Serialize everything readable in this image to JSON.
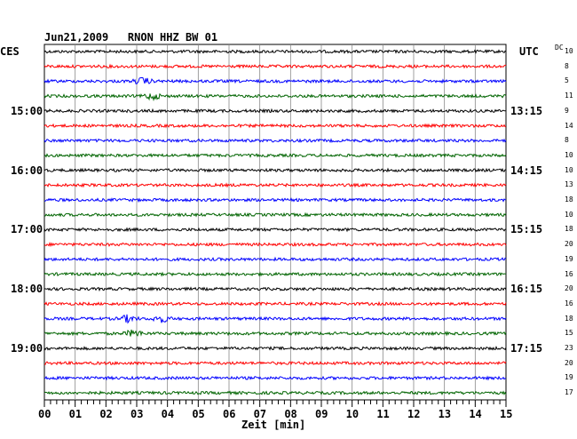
{
  "header": {
    "title": "Jun21,2009   RNON HHZ BW 01",
    "left_label": "CES",
    "right_label": "UTC",
    "dc_label": "DC"
  },
  "chart_data": {
    "type": "line",
    "title": "Jun21,2009   RNON HHZ BW 01",
    "xlabel": "Zeit [min]",
    "xlim": [
      0,
      15
    ],
    "x_ticks": [
      "00",
      "01",
      "02",
      "03",
      "04",
      "05",
      "06",
      "07",
      "08",
      "09",
      "10",
      "11",
      "12",
      "13",
      "14",
      "15"
    ],
    "trace_count": 24,
    "trace_colors": [
      "#000000",
      "#ff0000",
      "#0000ff",
      "#006400"
    ],
    "left_time_labels": [
      "15:00",
      "16:00",
      "17:00",
      "18:00",
      "19:00"
    ],
    "right_time_labels": [
      "13:15",
      "14:15",
      "15:15",
      "16:15",
      "17:15"
    ],
    "time_label_trace_index": [
      4,
      8,
      12,
      16,
      20
    ],
    "dc_values": [
      "10",
      "8",
      "5",
      "11",
      "9",
      "14",
      "8",
      "10",
      "10",
      "13",
      "18",
      "10",
      "18",
      "20",
      "19",
      "16",
      "20",
      "16",
      "18",
      "15",
      "23",
      "20",
      "19",
      "17"
    ],
    "events": [
      {
        "trace": 2,
        "minute": 3.2,
        "label": ""
      },
      {
        "trace": 3,
        "minute": 3.5,
        "label": ""
      },
      {
        "trace": 18,
        "minute": 2.7,
        "label": ""
      },
      {
        "trace": 18,
        "minute": 3.8,
        "label": ""
      },
      {
        "trace": 19,
        "minute": 2.9,
        "label": ""
      }
    ]
  }
}
